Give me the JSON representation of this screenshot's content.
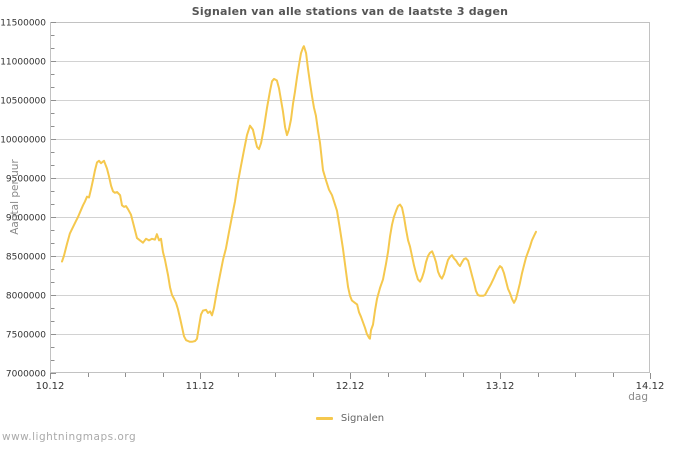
{
  "title": "Signalen van alle stations van de laatste 3 dagen",
  "watermark": "www.lightningmaps.org",
  "legend": {
    "label": "Signalen"
  },
  "colors": {
    "line": "#F5C84E",
    "grid": "#d2d2d2",
    "axis_border": "#c2c2c2",
    "tick": "#8f8f8f",
    "tick_label": "#333333",
    "title": "#555555",
    "axis_title": "#8a8a8a",
    "legend_text": "#666666",
    "watermark": "#aaaaaa",
    "background": "#ffffff"
  },
  "chart_data": {
    "type": "line",
    "title": "Signalen van alle stations van de laatste 3 dagen",
    "xlabel": "dag",
    "ylabel": "Aantal per uur",
    "xlim": [
      10,
      14
    ],
    "ylim": [
      7000000,
      11500000
    ],
    "grid": "horizontal-only",
    "legend_position": "bottom-center",
    "x_minor_step": 0.25,
    "y_minor_divisions": 3,
    "x_ticks": [
      {
        "value": 10,
        "label": "10.12"
      },
      {
        "value": 11,
        "label": "11.12"
      },
      {
        "value": 12,
        "label": "12.12"
      },
      {
        "value": 13,
        "label": "13.12"
      },
      {
        "value": 14,
        "label": "14.12"
      }
    ],
    "y_ticks": [
      {
        "value": 7000000,
        "label": "7000000"
      },
      {
        "value": 7500000,
        "label": "7500000"
      },
      {
        "value": 8000000,
        "label": "8000000"
      },
      {
        "value": 8500000,
        "label": "8500000"
      },
      {
        "value": 9000000,
        "label": "9000000"
      },
      {
        "value": 9500000,
        "label": "9500000"
      },
      {
        "value": 10000000,
        "label": "10000000"
      },
      {
        "value": 10500000,
        "label": "10500000"
      },
      {
        "value": 11000000,
        "label": "11000000"
      },
      {
        "value": 11500000,
        "label": "11500000"
      }
    ],
    "series": [
      {
        "name": "Signalen",
        "color": "#F5C84E",
        "points": [
          [
            10.08,
            8430000
          ],
          [
            10.093,
            8500000
          ],
          [
            10.113,
            8650000
          ],
          [
            10.133,
            8790000
          ],
          [
            10.153,
            8870000
          ],
          [
            10.173,
            8950000
          ],
          [
            10.187,
            9000000
          ],
          [
            10.2,
            9060000
          ],
          [
            10.22,
            9150000
          ],
          [
            10.233,
            9200000
          ],
          [
            10.247,
            9260000
          ],
          [
            10.26,
            9250000
          ],
          [
            10.273,
            9350000
          ],
          [
            10.287,
            9480000
          ],
          [
            10.3,
            9600000
          ],
          [
            10.313,
            9700000
          ],
          [
            10.327,
            9720000
          ],
          [
            10.34,
            9690000
          ],
          [
            10.347,
            9700000
          ],
          [
            10.36,
            9720000
          ],
          [
            10.38,
            9620000
          ],
          [
            10.393,
            9520000
          ],
          [
            10.407,
            9400000
          ],
          [
            10.42,
            9330000
          ],
          [
            10.433,
            9310000
          ],
          [
            10.447,
            9320000
          ],
          [
            10.467,
            9280000
          ],
          [
            10.48,
            9150000
          ],
          [
            10.493,
            9130000
          ],
          [
            10.507,
            9140000
          ],
          [
            10.52,
            9100000
          ],
          [
            10.54,
            9030000
          ],
          [
            10.56,
            8880000
          ],
          [
            10.58,
            8730000
          ],
          [
            10.6,
            8700000
          ],
          [
            10.62,
            8670000
          ],
          [
            10.64,
            8720000
          ],
          [
            10.66,
            8700000
          ],
          [
            10.68,
            8720000
          ],
          [
            10.7,
            8710000
          ],
          [
            10.713,
            8780000
          ],
          [
            10.727,
            8700000
          ],
          [
            10.74,
            8720000
          ],
          [
            10.753,
            8550000
          ],
          [
            10.767,
            8450000
          ],
          [
            10.787,
            8250000
          ],
          [
            10.8,
            8100000
          ],
          [
            10.813,
            8000000
          ],
          [
            10.827,
            7950000
          ],
          [
            10.84,
            7900000
          ],
          [
            10.853,
            7820000
          ],
          [
            10.867,
            7700000
          ],
          [
            10.88,
            7590000
          ],
          [
            10.893,
            7470000
          ],
          [
            10.907,
            7420000
          ],
          [
            10.92,
            7410000
          ],
          [
            10.933,
            7400000
          ],
          [
            10.947,
            7400000
          ],
          [
            10.967,
            7410000
          ],
          [
            10.98,
            7440000
          ],
          [
            10.993,
            7600000
          ],
          [
            11.007,
            7750000
          ],
          [
            11.02,
            7800000
          ],
          [
            11.04,
            7810000
          ],
          [
            11.053,
            7770000
          ],
          [
            11.067,
            7790000
          ],
          [
            11.08,
            7740000
          ],
          [
            11.093,
            7830000
          ],
          [
            11.113,
            8050000
          ],
          [
            11.133,
            8250000
          ],
          [
            11.153,
            8450000
          ],
          [
            11.173,
            8600000
          ],
          [
            11.193,
            8800000
          ],
          [
            11.213,
            9000000
          ],
          [
            11.233,
            9200000
          ],
          [
            11.253,
            9450000
          ],
          [
            11.273,
            9650000
          ],
          [
            11.293,
            9850000
          ],
          [
            11.313,
            10050000
          ],
          [
            11.333,
            10170000
          ],
          [
            11.353,
            10120000
          ],
          [
            11.367,
            10000000
          ],
          [
            11.38,
            9900000
          ],
          [
            11.393,
            9870000
          ],
          [
            11.407,
            9950000
          ],
          [
            11.427,
            10150000
          ],
          [
            11.447,
            10400000
          ],
          [
            11.467,
            10620000
          ],
          [
            11.48,
            10740000
          ],
          [
            11.493,
            10770000
          ],
          [
            11.513,
            10750000
          ],
          [
            11.527,
            10650000
          ],
          [
            11.54,
            10500000
          ],
          [
            11.553,
            10350000
          ],
          [
            11.567,
            10150000
          ],
          [
            11.58,
            10050000
          ],
          [
            11.593,
            10120000
          ],
          [
            11.607,
            10250000
          ],
          [
            11.62,
            10450000
          ],
          [
            11.633,
            10600000
          ],
          [
            11.647,
            10800000
          ],
          [
            11.66,
            10950000
          ],
          [
            11.673,
            11100000
          ],
          [
            11.687,
            11170000
          ],
          [
            11.693,
            11190000
          ],
          [
            11.707,
            11100000
          ],
          [
            11.72,
            10900000
          ],
          [
            11.733,
            10720000
          ],
          [
            11.747,
            10550000
          ],
          [
            11.76,
            10400000
          ],
          [
            11.773,
            10300000
          ],
          [
            11.787,
            10100000
          ],
          [
            11.8,
            9950000
          ],
          [
            11.82,
            9600000
          ],
          [
            11.84,
            9470000
          ],
          [
            11.86,
            9350000
          ],
          [
            11.88,
            9280000
          ],
          [
            11.893,
            9200000
          ],
          [
            11.913,
            9080000
          ],
          [
            11.933,
            8850000
          ],
          [
            11.953,
            8600000
          ],
          [
            11.973,
            8300000
          ],
          [
            11.987,
            8100000
          ],
          [
            12.0,
            7990000
          ],
          [
            12.013,
            7930000
          ],
          [
            12.033,
            7900000
          ],
          [
            12.047,
            7880000
          ],
          [
            12.06,
            7780000
          ],
          [
            12.073,
            7720000
          ],
          [
            12.087,
            7650000
          ],
          [
            12.1,
            7580000
          ],
          [
            12.113,
            7500000
          ],
          [
            12.127,
            7450000
          ],
          [
            12.133,
            7440000
          ],
          [
            12.14,
            7550000
          ],
          [
            12.153,
            7620000
          ],
          [
            12.167,
            7800000
          ],
          [
            12.18,
            7950000
          ],
          [
            12.2,
            8090000
          ],
          [
            12.22,
            8200000
          ],
          [
            12.24,
            8400000
          ],
          [
            12.253,
            8550000
          ],
          [
            12.267,
            8750000
          ],
          [
            12.28,
            8900000
          ],
          [
            12.293,
            9000000
          ],
          [
            12.307,
            9080000
          ],
          [
            12.32,
            9140000
          ],
          [
            12.333,
            9160000
          ],
          [
            12.347,
            9120000
          ],
          [
            12.36,
            9000000
          ],
          [
            12.373,
            8850000
          ],
          [
            12.387,
            8700000
          ],
          [
            12.4,
            8620000
          ],
          [
            12.413,
            8500000
          ],
          [
            12.427,
            8380000
          ],
          [
            12.44,
            8280000
          ],
          [
            12.453,
            8200000
          ],
          [
            12.467,
            8170000
          ],
          [
            12.48,
            8220000
          ],
          [
            12.493,
            8300000
          ],
          [
            12.507,
            8420000
          ],
          [
            12.52,
            8500000
          ],
          [
            12.533,
            8540000
          ],
          [
            12.547,
            8560000
          ],
          [
            12.56,
            8500000
          ],
          [
            12.573,
            8420000
          ],
          [
            12.587,
            8300000
          ],
          [
            12.6,
            8240000
          ],
          [
            12.613,
            8210000
          ],
          [
            12.627,
            8270000
          ],
          [
            12.64,
            8360000
          ],
          [
            12.653,
            8450000
          ],
          [
            12.667,
            8490000
          ],
          [
            12.68,
            8510000
          ],
          [
            12.693,
            8470000
          ],
          [
            12.707,
            8440000
          ],
          [
            12.72,
            8400000
          ],
          [
            12.733,
            8370000
          ],
          [
            12.747,
            8420000
          ],
          [
            12.76,
            8460000
          ],
          [
            12.773,
            8470000
          ],
          [
            12.787,
            8440000
          ],
          [
            12.8,
            8350000
          ],
          [
            12.813,
            8250000
          ],
          [
            12.827,
            8150000
          ],
          [
            12.84,
            8050000
          ],
          [
            12.853,
            8000000
          ],
          [
            12.867,
            7990000
          ],
          [
            12.887,
            7990000
          ],
          [
            12.9,
            8000000
          ],
          [
            12.92,
            8070000
          ],
          [
            12.94,
            8140000
          ],
          [
            12.96,
            8220000
          ],
          [
            12.98,
            8310000
          ],
          [
            13.0,
            8370000
          ],
          [
            13.013,
            8350000
          ],
          [
            13.027,
            8280000
          ],
          [
            13.04,
            8180000
          ],
          [
            13.053,
            8080000
          ],
          [
            13.067,
            8020000
          ],
          [
            13.08,
            7950000
          ],
          [
            13.093,
            7900000
          ],
          [
            13.107,
            7950000
          ],
          [
            13.12,
            8050000
          ],
          [
            13.133,
            8150000
          ],
          [
            13.147,
            8280000
          ],
          [
            13.16,
            8380000
          ],
          [
            13.173,
            8480000
          ],
          [
            13.187,
            8550000
          ],
          [
            13.2,
            8620000
          ],
          [
            13.213,
            8700000
          ],
          [
            13.227,
            8760000
          ],
          [
            13.24,
            8810000
          ]
        ]
      }
    ]
  }
}
